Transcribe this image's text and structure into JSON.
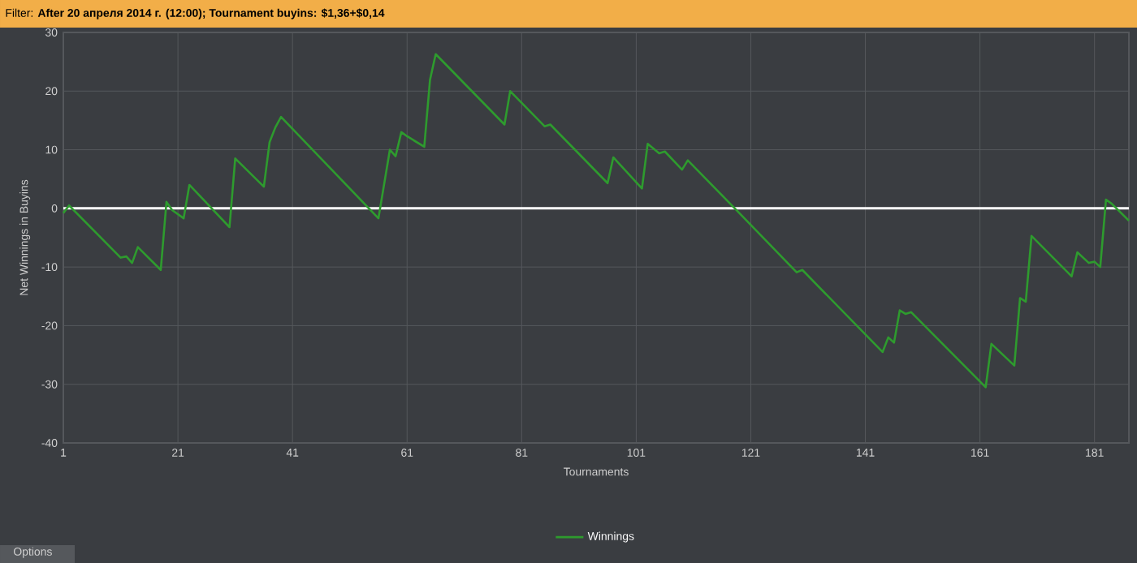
{
  "chart_data": {
    "type": "line",
    "title": "Filter: **After 20 апреля 2014 г. (12:00); Tournament buyins: $1,36+$0,14**",
    "xlabel": "Tournaments",
    "ylabel": "Net Winnings in Buyins",
    "x": [
      1,
      2,
      11,
      12,
      13,
      14,
      18,
      19,
      20,
      22,
      23,
      30,
      31,
      36,
      37,
      38,
      39,
      56,
      58,
      59,
      60,
      61,
      64,
      65,
      66,
      78,
      79,
      85,
      86,
      96,
      97,
      102,
      103,
      105,
      106,
      109,
      110,
      118,
      129,
      130,
      144,
      145,
      146,
      147,
      148,
      149,
      162,
      163,
      167,
      168,
      169,
      170,
      177,
      178,
      180,
      181,
      182,
      183,
      184,
      187
    ],
    "series": [
      {
        "name": "Winnings",
        "color": "#2e9b2e",
        "values": [
          -0.8,
          0.5,
          -8.4,
          -8.2,
          -9.3,
          -6.6,
          -10.5,
          1.1,
          -0.3,
          -1.7,
          4,
          -3.2,
          8.5,
          3.7,
          11.3,
          13.8,
          15.6,
          -1.7,
          10,
          8.9,
          13,
          12.3,
          10.5,
          21.9,
          26.3,
          14.3,
          20,
          14,
          14.3,
          4.3,
          8.7,
          3.4,
          11,
          9.4,
          9.7,
          6.6,
          8.2,
          0.2,
          -10.9,
          -10.5,
          -24.5,
          -22,
          -22.9,
          -17.4,
          -18,
          -17.7,
          -30.5,
          -23.1,
          -26.8,
          -15.3,
          -15.9,
          -4.7,
          -11.6,
          -7.5,
          -9.3,
          -9.1,
          -10,
          1.5,
          0.8,
          -2.1
        ]
      }
    ],
    "xlim": [
      1,
      187
    ],
    "ylim": [
      -40,
      30
    ],
    "xticks": [
      1,
      21,
      41,
      61,
      81,
      101,
      121,
      141,
      161,
      181
    ],
    "yticks": [
      -40,
      -30,
      -20,
      -10,
      0,
      10,
      20,
      30
    ],
    "grid": true,
    "legend": "bottom",
    "marker": "none",
    "line_style": "solid",
    "ref_lines": [
      {
        "axis": "y",
        "value": 0,
        "color": "#ffffff"
      }
    ],
    "annotations": [
      "Options"
    ]
  }
}
